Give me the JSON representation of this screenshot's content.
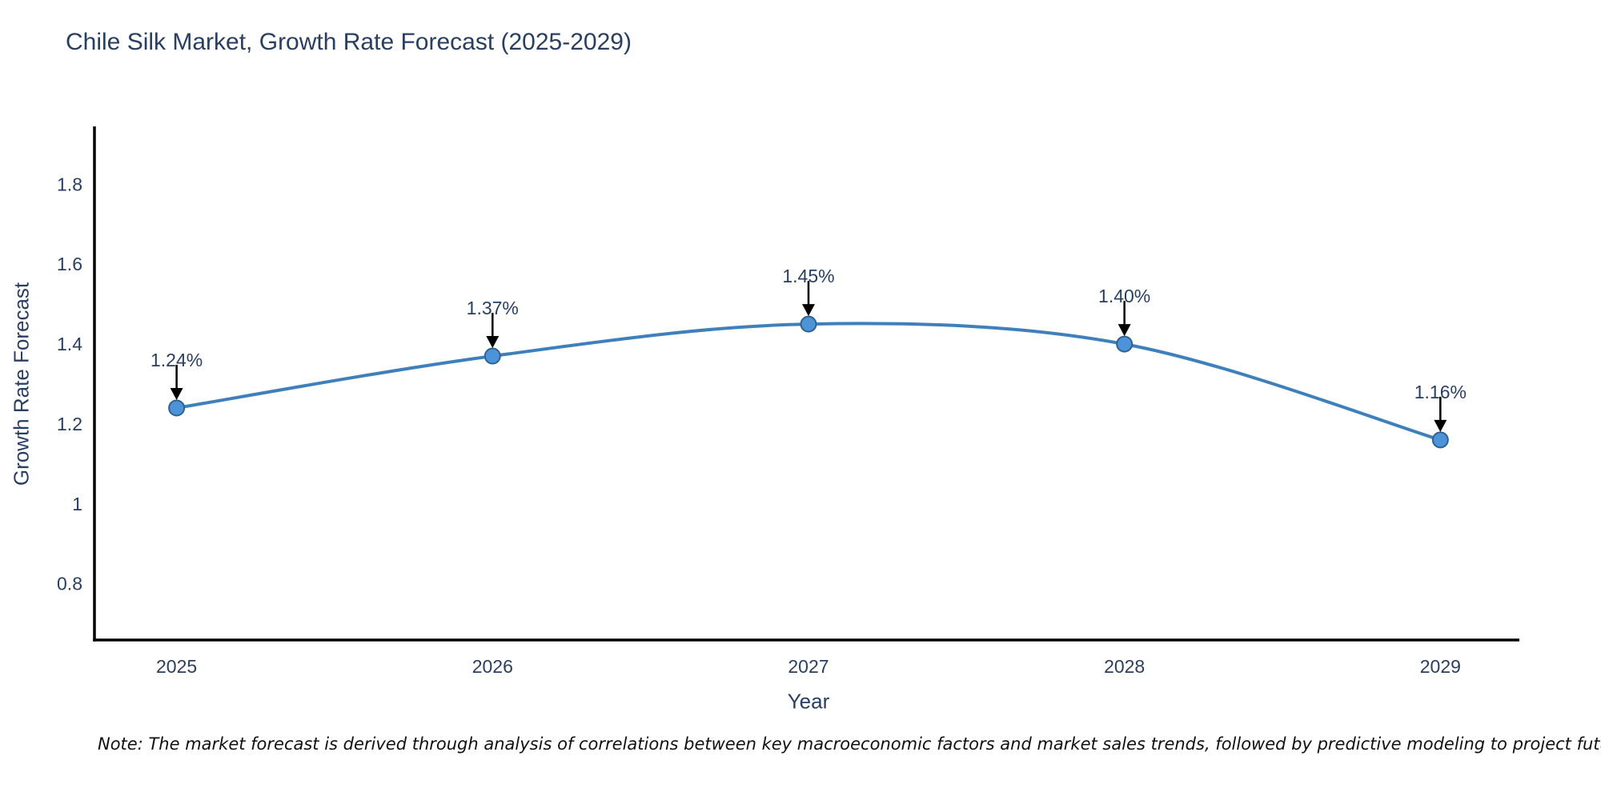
{
  "title": "Chile Silk Market, Growth Rate Forecast (2025-2029)",
  "note": "Note: The market forecast is derived through analysis of correlations between key macroeconomic factors and market sales trends, followed by predictive modeling to project future sales",
  "colors": {
    "title_text": "#2a3f5f",
    "tick_text": "#2a3f5f",
    "axis_line": "#000000",
    "series_line": "#3f7fba",
    "marker_fill": "#4d93d9",
    "marker_edge": "#2f628f",
    "annotation_arrow": "#000000",
    "annotation_text": "#2a3f5f",
    "note_text": "#111111",
    "background": "#ffffff"
  },
  "chart_data": {
    "type": "line",
    "title": "Chile Silk Market, Growth Rate Forecast (2025-2029)",
    "xlabel": "Year",
    "ylabel": "Growth Rate Forecast",
    "x": [
      2025,
      2026,
      2027,
      2028,
      2029
    ],
    "series": [
      {
        "name": "Growth Rate Forecast",
        "values": [
          1.24,
          1.37,
          1.45,
          1.4,
          1.16
        ]
      }
    ],
    "point_labels": [
      "1.24%",
      "1.37%",
      "1.45%",
      "1.40%",
      "1.16%"
    ],
    "xticks": [
      2025,
      2026,
      2027,
      2028,
      2029
    ],
    "xtick_labels": [
      "2025",
      "2026",
      "2027",
      "2028",
      "2029"
    ],
    "yticks": [
      0.8,
      1.0,
      1.2,
      1.4,
      1.6,
      1.8
    ],
    "ytick_labels": [
      "0.8",
      "1",
      "1.2",
      "1.4",
      "1.6",
      "1.8"
    ],
    "xlim": [
      2024.74,
      2029.25
    ],
    "ylim": [
      0.659,
      1.945
    ],
    "grid": false,
    "legend": "none",
    "line_shape": "spline",
    "annotations": "value labels with downward arrows above each point"
  }
}
